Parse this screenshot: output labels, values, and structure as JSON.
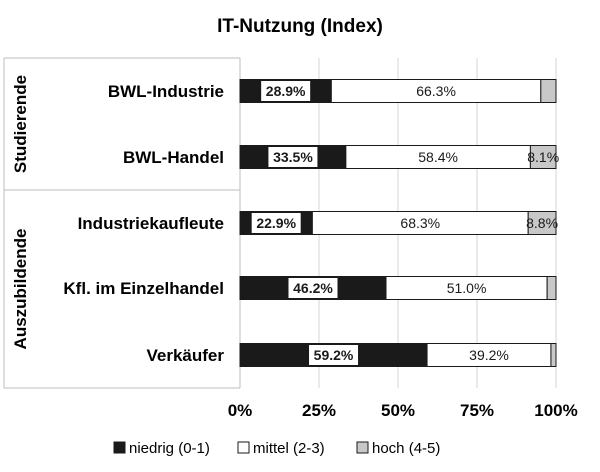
{
  "chart_data": {
    "type": "bar",
    "orientation": "horizontal",
    "stacked": "100%",
    "title": "IT-Nutzung (Index)",
    "groups": [
      {
        "name": "Studierende",
        "categories": [
          "BWL-Industrie",
          "BWL-Handel"
        ]
      },
      {
        "name": "Auszubildende",
        "categories": [
          "Industriekaufleute",
          "Kfl. im Einzelhandel",
          "Verkäufer"
        ]
      }
    ],
    "categories": [
      "BWL-Industrie",
      "BWL-Handel",
      "Industriekaufleute",
      "Kfl. im Einzelhandel",
      "Verkäufer"
    ],
    "series": [
      {
        "name": "niedrig (0-1)",
        "color": "#1a1a1a",
        "values": [
          28.9,
          33.5,
          22.9,
          46.2,
          59.2
        ],
        "labels": [
          "28.9%",
          "33.5%",
          "22.9%",
          "46.2%",
          "59.2%"
        ]
      },
      {
        "name": "mittel (2-3)",
        "color": "#ffffff",
        "values": [
          66.3,
          58.4,
          68.3,
          51.0,
          39.2
        ],
        "labels": [
          "66.3%",
          "58.4%",
          "68.3%",
          "51.0%",
          "39.2%"
        ]
      },
      {
        "name": "hoch (4-5)",
        "color": "#c8c8c8",
        "values": [
          4.8,
          8.1,
          8.8,
          2.8,
          1.6
        ],
        "labels": [
          "",
          "8.1%",
          "8.8%",
          "",
          ""
        ]
      }
    ],
    "x_ticks": [
      "0%",
      "25%",
      "50%",
      "75%",
      "100%"
    ],
    "xlim": [
      0,
      100
    ],
    "grid": true,
    "legend_position": "bottom"
  }
}
